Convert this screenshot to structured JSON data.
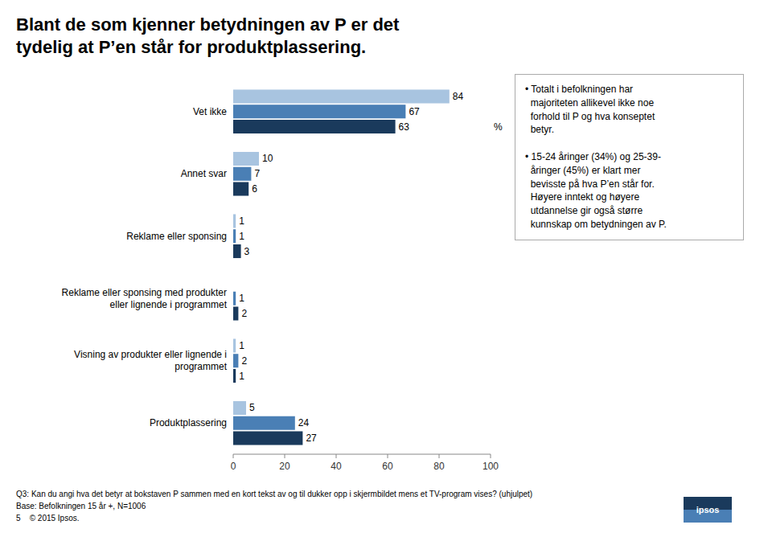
{
  "chart_data": {
    "type": "bar",
    "orientation": "horizontal",
    "title": "Blant de som kjenner betydningen av P er det\ntydelig at P’en står for produktplassering.",
    "categories": [
      "Produktplassering",
      "Visning av produkter eller lignende i\nprogrammet",
      "Reklame eller sponsing med produkter\neller lignende i programmet",
      "Reklame eller sponsing",
      "Annet svar",
      "Vet ikke"
    ],
    "series": [
      {
        "color": "#a8c4e0",
        "values": [
          5,
          1,
          0,
          1,
          10,
          84
        ]
      },
      {
        "color": "#4a7fb5",
        "values": [
          24,
          2,
          1,
          1,
          7,
          67
        ]
      },
      {
        "color": "#1a3a5c",
        "values": [
          27,
          1,
          2,
          3,
          6,
          63
        ]
      }
    ],
    "xlim": [
      0,
      100
    ],
    "xticks": [
      0,
      20,
      40,
      60,
      80,
      100
    ],
    "xlabel": "%",
    "grid": false,
    "data_labels": true,
    "annotation": "• Totalt i befolkningen har\n  majoriteten allikevel ikke noe\n  forhold til P og hva konseptet\n  betyr.\n\n• 15-24 åringer (34%) og 25-39-\n  åringer (45%) er klart mer\n  bevisste på hva P’en står for.\n  Høyere inntekt og høyere\n  utdannelse gir også større\n  kunnskap om betydningen av P.",
    "footnotes": [
      "Q3: Kan du angi hva det betyr at bokstaven P sammen med en kort tekst av og til dukker opp i skjermbildet mens et TV-program vises? (uhjulpet)",
      "Base: Befolkningen 15 år +, N=1006",
      "5    © 2015 Ipsos."
    ],
    "logo": "ipsos"
  }
}
